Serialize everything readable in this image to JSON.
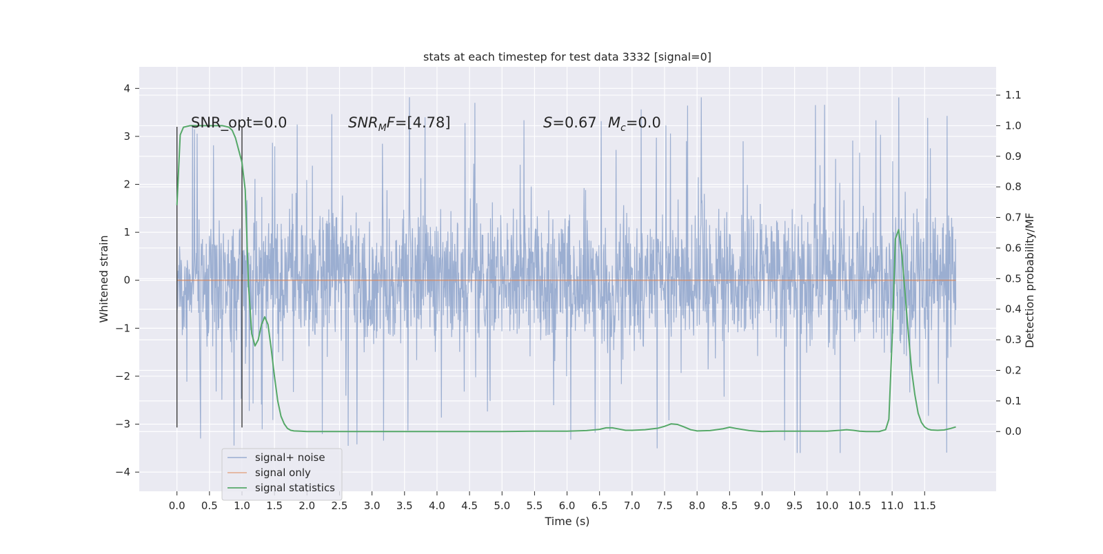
{
  "chart_data": {
    "type": "line",
    "title": "stats at each timestep for test data 3332 [signal=0]",
    "xlabel": "Time (s)",
    "ylabel_left": "Whitened strain",
    "ylabel_right": "Detection probability/MF",
    "xlim": [
      -0.58,
      12.6
    ],
    "ylim_left": [
      -4.4,
      4.45
    ],
    "ylim_right": [
      -0.1955,
      1.1925
    ],
    "x_ticks": [
      "0.0",
      "0.5",
      "1.0",
      "1.5",
      "2.0",
      "2.5",
      "3.0",
      "3.5",
      "4.0",
      "4.5",
      "5.0",
      "5.5",
      "6.0",
      "6.5",
      "7.0",
      "7.5",
      "8.0",
      "8.5",
      "9.0",
      "9.5",
      "10.0",
      "10.5",
      "11.0",
      "11.5"
    ],
    "y_ticks_left": [
      "4",
      "3",
      "2",
      "1",
      "0",
      "−1",
      "−2",
      "−3",
      "−4"
    ],
    "y_ticks_right": [
      "1.1",
      "1.0",
      "0.9",
      "0.8",
      "0.7",
      "0.6",
      "0.5",
      "0.4",
      "0.3",
      "0.2",
      "0.1",
      "0.0"
    ],
    "grid": true,
    "legend_position": "lower-left",
    "annotations": {
      "snr_opt": "SNR_opt=0.0",
      "snr_mf_base": "SNR",
      "snr_mf_sub": "M",
      "snr_mf_rest": "F=[4.78]",
      "s_var": "S",
      "s_rest": "=0.67",
      "mc_var": "M",
      "mc_sub": "c",
      "mc_rest": "=0.0"
    },
    "window_markers_x": [
      0.0,
      1.0
    ],
    "window_markers_ylim_left": [
      -3.07,
      3.2
    ],
    "series": [
      {
        "name": "signal+ noise",
        "color": "#4c72b0",
        "axis": "left",
        "x_range": [
          0.0,
          11.98
        ],
        "samples": 2048,
        "typical_range": [
          -1.9,
          2.0
        ],
        "extreme_range": [
          -3.6,
          4.1
        ]
      },
      {
        "name": "signal only",
        "color": "#dd8452",
        "axis": "left",
        "x": [
          0.0,
          11.98
        ],
        "y": [
          0.0,
          0.0
        ]
      },
      {
        "name": "signal statistics",
        "color": "#55a868",
        "axis": "right",
        "x": [
          0.0,
          0.05,
          0.1,
          0.2,
          0.3,
          0.4,
          0.5,
          0.6,
          0.7,
          0.8,
          0.85,
          0.9,
          0.95,
          1.0,
          1.05,
          1.1,
          1.15,
          1.2,
          1.25,
          1.3,
          1.35,
          1.4,
          1.45,
          1.5,
          1.55,
          1.6,
          1.65,
          1.7,
          1.75,
          1.8,
          1.9,
          2.0,
          2.5,
          3.0,
          3.5,
          4.0,
          4.5,
          5.0,
          5.5,
          6.0,
          6.3,
          6.5,
          6.6,
          6.7,
          6.8,
          6.9,
          7.0,
          7.2,
          7.4,
          7.5,
          7.6,
          7.7,
          7.8,
          7.9,
          8.0,
          8.2,
          8.4,
          8.5,
          8.6,
          8.8,
          9.0,
          9.2,
          9.5,
          9.8,
          10.0,
          10.2,
          10.3,
          10.4,
          10.5,
          10.6,
          10.7,
          10.8,
          10.9,
          10.95,
          11.0,
          11.05,
          11.1,
          11.15,
          11.2,
          11.25,
          11.3,
          11.35,
          11.4,
          11.45,
          11.5,
          11.55,
          11.6,
          11.7,
          11.8,
          11.9,
          11.98
        ],
        "y": [
          0.74,
          0.97,
          0.995,
          1.0,
          1.0,
          1.0,
          1.0,
          1.0,
          1.0,
          0.995,
          0.985,
          0.96,
          0.92,
          0.88,
          0.79,
          0.48,
          0.32,
          0.28,
          0.3,
          0.35,
          0.375,
          0.35,
          0.27,
          0.18,
          0.1,
          0.05,
          0.025,
          0.01,
          0.004,
          0.002,
          0.001,
          0.0,
          0.0,
          0.0,
          0.0,
          0.0,
          0.0,
          0.0,
          0.001,
          0.001,
          0.003,
          0.007,
          0.012,
          0.012,
          0.008,
          0.004,
          0.004,
          0.006,
          0.011,
          0.017,
          0.025,
          0.023,
          0.015,
          0.006,
          0.002,
          0.003,
          0.009,
          0.014,
          0.01,
          0.003,
          0.0,
          0.001,
          0.001,
          0.001,
          0.001,
          0.004,
          0.006,
          0.004,
          0.001,
          0.0,
          0.0,
          0.0,
          0.006,
          0.04,
          0.3,
          0.63,
          0.66,
          0.58,
          0.45,
          0.32,
          0.2,
          0.12,
          0.06,
          0.03,
          0.015,
          0.008,
          0.005,
          0.004,
          0.005,
          0.01,
          0.015
        ]
      }
    ]
  }
}
